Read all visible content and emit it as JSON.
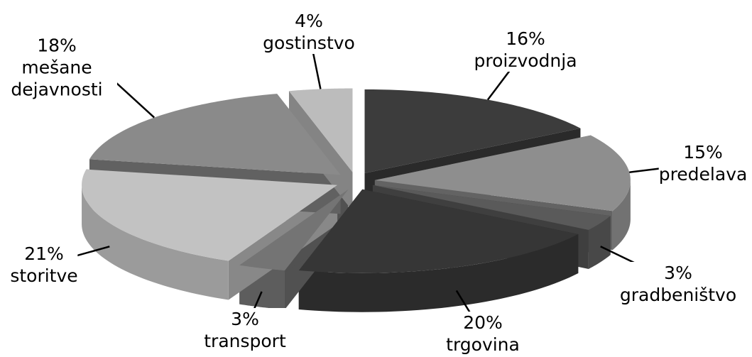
{
  "chart_data": {
    "type": "pie",
    "categories": [
      "proizvodnja",
      "predelava",
      "gradbeništvo",
      "trgovina",
      "transport",
      "storitve",
      "mešane dejavnosti",
      "gostinstvo"
    ],
    "values": [
      16,
      15,
      3,
      20,
      3,
      21,
      18,
      4
    ],
    "value_labels": [
      "16%",
      "15%",
      "3%",
      "20%",
      "3%",
      "21%",
      "18%",
      "4%"
    ],
    "colors": [
      "#3c3c3c",
      "#8e8e8e",
      "#5a5a5a",
      "#363636",
      "#747474",
      "#c2c2c2",
      "#8a8a8a",
      "#bcbcbc"
    ]
  }
}
